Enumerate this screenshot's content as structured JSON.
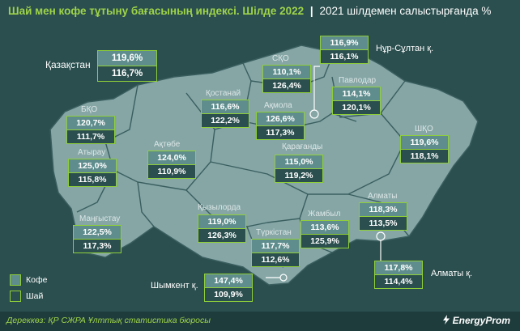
{
  "title": {
    "main": "Шай мен кофе тұтыну бағасының индексі. Шілде 2022",
    "separator": "|",
    "sub": "2021 шілдемен салыстырғанда %"
  },
  "colors": {
    "background": "#2b4e4e",
    "region_fill": "#86a6a6",
    "accent": "#8fcf3a",
    "coffee_cell": "#5f8d8d"
  },
  "legend": {
    "coffee": "Кофе",
    "tea": "Шай"
  },
  "national": {
    "label": "Қазақстан",
    "coffee": "119,6%",
    "tea": "116,7%"
  },
  "regions": [
    {
      "name": "СҚО",
      "coffee": "110,1%",
      "tea": "126,4%"
    },
    {
      "name": "Қостанай",
      "coffee": "116,6%",
      "tea": "122,2%"
    },
    {
      "name": "Ақмола",
      "coffee": "126,6%",
      "tea": "117,3%"
    },
    {
      "name": "Павлодар",
      "coffee": "114,1%",
      "tea": "120,1%"
    },
    {
      "name": "БҚО",
      "coffee": "120,7%",
      "tea": "111,7%"
    },
    {
      "name": "Атырау",
      "coffee": "125,0%",
      "tea": "115,8%"
    },
    {
      "name": "Ақтөбе",
      "coffee": "124,0%",
      "tea": "110,9%"
    },
    {
      "name": "Қарағанды",
      "coffee": "115,0%",
      "tea": "119,2%"
    },
    {
      "name": "ШҚО",
      "coffee": "119,6%",
      "tea": "118,1%"
    },
    {
      "name": "Маңғыстау",
      "coffee": "122,5%",
      "tea": "117,3%"
    },
    {
      "name": "Қызылорда",
      "coffee": "119,0%",
      "tea": "126,3%"
    },
    {
      "name": "Түркістан",
      "coffee": "117,7%",
      "tea": "112,6%"
    },
    {
      "name": "Жамбыл",
      "coffee": "113,6%",
      "tea": "125,9%"
    },
    {
      "name": "Алматы",
      "coffee": "118,3%",
      "tea": "113,5%"
    }
  ],
  "cities": [
    {
      "name": "Нұр-Сұлтан қ.",
      "coffee": "116,9%",
      "tea": "116,1%"
    },
    {
      "name": "Алматы қ.",
      "coffee": "117,8%",
      "tea": "114,4%"
    },
    {
      "name": "Шымкент қ.",
      "coffee": "147,4%",
      "tea": "109,9%"
    }
  ],
  "footer": {
    "source": "Дереккөз: ҚР СЖРА Ұлттық статистика бюросы",
    "logo": "EnergyProm"
  }
}
